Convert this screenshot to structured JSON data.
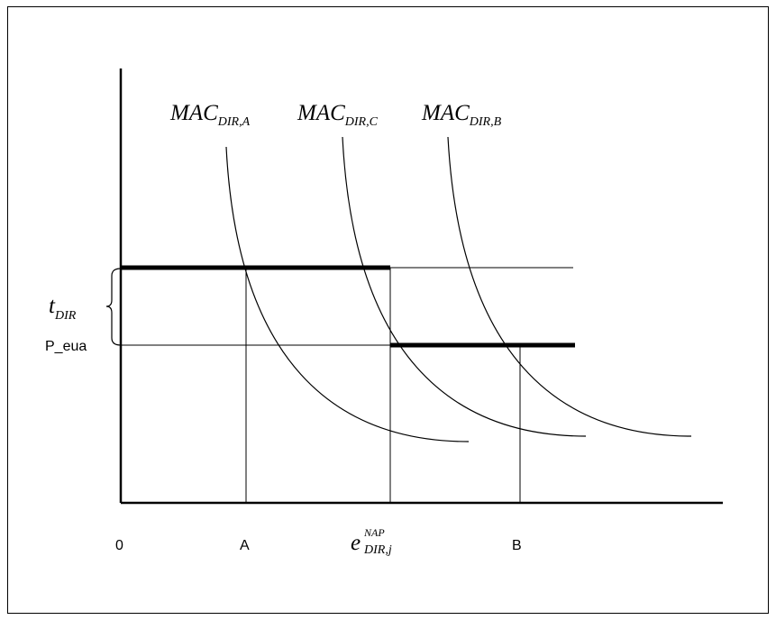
{
  "curves": [
    {
      "key": "A",
      "label": "MAC",
      "subscript": "DIR,A"
    },
    {
      "key": "C",
      "label": "MAC",
      "subscript": "DIR,C"
    },
    {
      "key": "B",
      "label": "MAC",
      "subscript": "DIR,B"
    }
  ],
  "y_labels": {
    "tax_main": "t",
    "tax_subscript": "DIR",
    "price": "P_eua"
  },
  "x_labels": {
    "origin": "0",
    "a": "A",
    "nap_main": "e",
    "nap_superscript": "NAP",
    "nap_subscript": "DIR,j",
    "b": "B"
  }
}
